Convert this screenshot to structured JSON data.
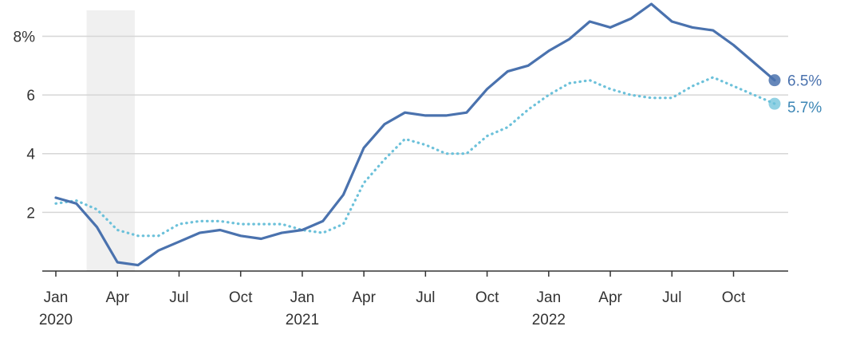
{
  "chart_data": {
    "type": "line",
    "title": "",
    "xlabel": "",
    "ylabel": "",
    "y_ticks": [
      {
        "value": 2,
        "label": "2"
      },
      {
        "value": 4,
        "label": "4"
      },
      {
        "value": 6,
        "label": "6"
      },
      {
        "value": 8,
        "label": "8%"
      }
    ],
    "x_ticks": [
      {
        "date": "2020-01",
        "label": "Jan",
        "year_label": "2020"
      },
      {
        "date": "2020-04",
        "label": "Apr",
        "year_label": ""
      },
      {
        "date": "2020-07",
        "label": "Jul",
        "year_label": ""
      },
      {
        "date": "2020-10",
        "label": "Oct",
        "year_label": ""
      },
      {
        "date": "2021-01",
        "label": "Jan",
        "year_label": "2021"
      },
      {
        "date": "2021-04",
        "label": "Apr",
        "year_label": ""
      },
      {
        "date": "2021-07",
        "label": "Jul",
        "year_label": ""
      },
      {
        "date": "2021-10",
        "label": "Oct",
        "year_label": ""
      },
      {
        "date": "2022-01",
        "label": "Jan",
        "year_label": "2022"
      },
      {
        "date": "2022-04",
        "label": "Apr",
        "year_label": ""
      },
      {
        "date": "2022-07",
        "label": "Jul",
        "year_label": ""
      },
      {
        "date": "2022-10",
        "label": "Oct",
        "year_label": ""
      }
    ],
    "x_range": [
      "2020-01",
      "2022-12"
    ],
    "ylim": [
      0,
      8.8
    ],
    "grid": true,
    "shaded_period": {
      "start": "2020-03",
      "end": "2020-05",
      "color": "#f0f0f0"
    },
    "series": [
      {
        "style": "solid",
        "color": "#4a72ae",
        "end_label": "6.5%",
        "x": [
          "2020-01",
          "2020-02",
          "2020-03",
          "2020-04",
          "2020-05",
          "2020-06",
          "2020-07",
          "2020-08",
          "2020-09",
          "2020-10",
          "2020-11",
          "2020-12",
          "2021-01",
          "2021-02",
          "2021-03",
          "2021-04",
          "2021-05",
          "2021-06",
          "2021-07",
          "2021-08",
          "2021-09",
          "2021-10",
          "2021-11",
          "2021-12",
          "2022-01",
          "2022-02",
          "2022-03",
          "2022-04",
          "2022-05",
          "2022-06",
          "2022-07",
          "2022-08",
          "2022-09",
          "2022-10",
          "2022-11",
          "2022-12"
        ],
        "values": [
          2.5,
          2.3,
          1.5,
          0.3,
          0.2,
          0.7,
          1.0,
          1.3,
          1.4,
          1.2,
          1.1,
          1.3,
          1.4,
          1.7,
          2.6,
          4.2,
          5.0,
          5.4,
          5.3,
          5.3,
          5.4,
          6.2,
          6.8,
          7.0,
          7.5,
          7.9,
          8.5,
          8.3,
          8.6,
          9.1,
          8.5,
          8.3,
          8.2,
          7.7,
          7.1,
          6.5
        ]
      },
      {
        "style": "dotted",
        "color": "#6cc1da",
        "end_label": "5.7%",
        "x": [
          "2020-01",
          "2020-02",
          "2020-03",
          "2020-04",
          "2020-05",
          "2020-06",
          "2020-07",
          "2020-08",
          "2020-09",
          "2020-10",
          "2020-11",
          "2020-12",
          "2021-01",
          "2021-02",
          "2021-03",
          "2021-04",
          "2021-05",
          "2021-06",
          "2021-07",
          "2021-08",
          "2021-09",
          "2021-10",
          "2021-11",
          "2021-12",
          "2022-01",
          "2022-02",
          "2022-03",
          "2022-04",
          "2022-05",
          "2022-06",
          "2022-07",
          "2022-08",
          "2022-09",
          "2022-10",
          "2022-11",
          "2022-12"
        ],
        "values": [
          2.3,
          2.4,
          2.1,
          1.4,
          1.2,
          1.2,
          1.6,
          1.7,
          1.7,
          1.6,
          1.6,
          1.6,
          1.4,
          1.3,
          1.6,
          3.0,
          3.8,
          4.5,
          4.3,
          4.0,
          4.0,
          4.6,
          4.9,
          5.5,
          6.0,
          6.4,
          6.5,
          6.2,
          6.0,
          5.9,
          5.9,
          6.3,
          6.6,
          6.3,
          6.0,
          5.7
        ]
      }
    ]
  }
}
